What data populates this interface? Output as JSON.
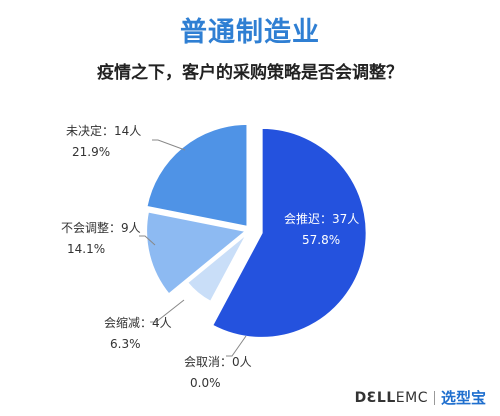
{
  "header": {
    "title": "普通制造业",
    "subtitle": "疫情之下，客户的采购策略是否会调整？"
  },
  "chart_data": {
    "type": "pie",
    "categories": [
      "会推迟",
      "会取消",
      "会缩减",
      "不会调整",
      "未决定"
    ],
    "values": [
      37,
      0,
      4,
      9,
      14
    ],
    "percents": [
      "57.8%",
      "0.0%",
      "6.3%",
      "14.1%",
      "21.9%"
    ],
    "labels": [
      "会推迟：37人",
      "会取消：0人",
      "会缩减：4人",
      "不会调整：9人",
      "未决定：14人"
    ],
    "colors": [
      "#2452de",
      "#c9def8",
      "#c9def8",
      "#8dbaf2",
      "#4f93e6"
    ],
    "legend": "none"
  },
  "footer": {
    "brand_dell": "DƐLL",
    "brand_emc": "EMC",
    "brand_cn": "选型宝"
  }
}
